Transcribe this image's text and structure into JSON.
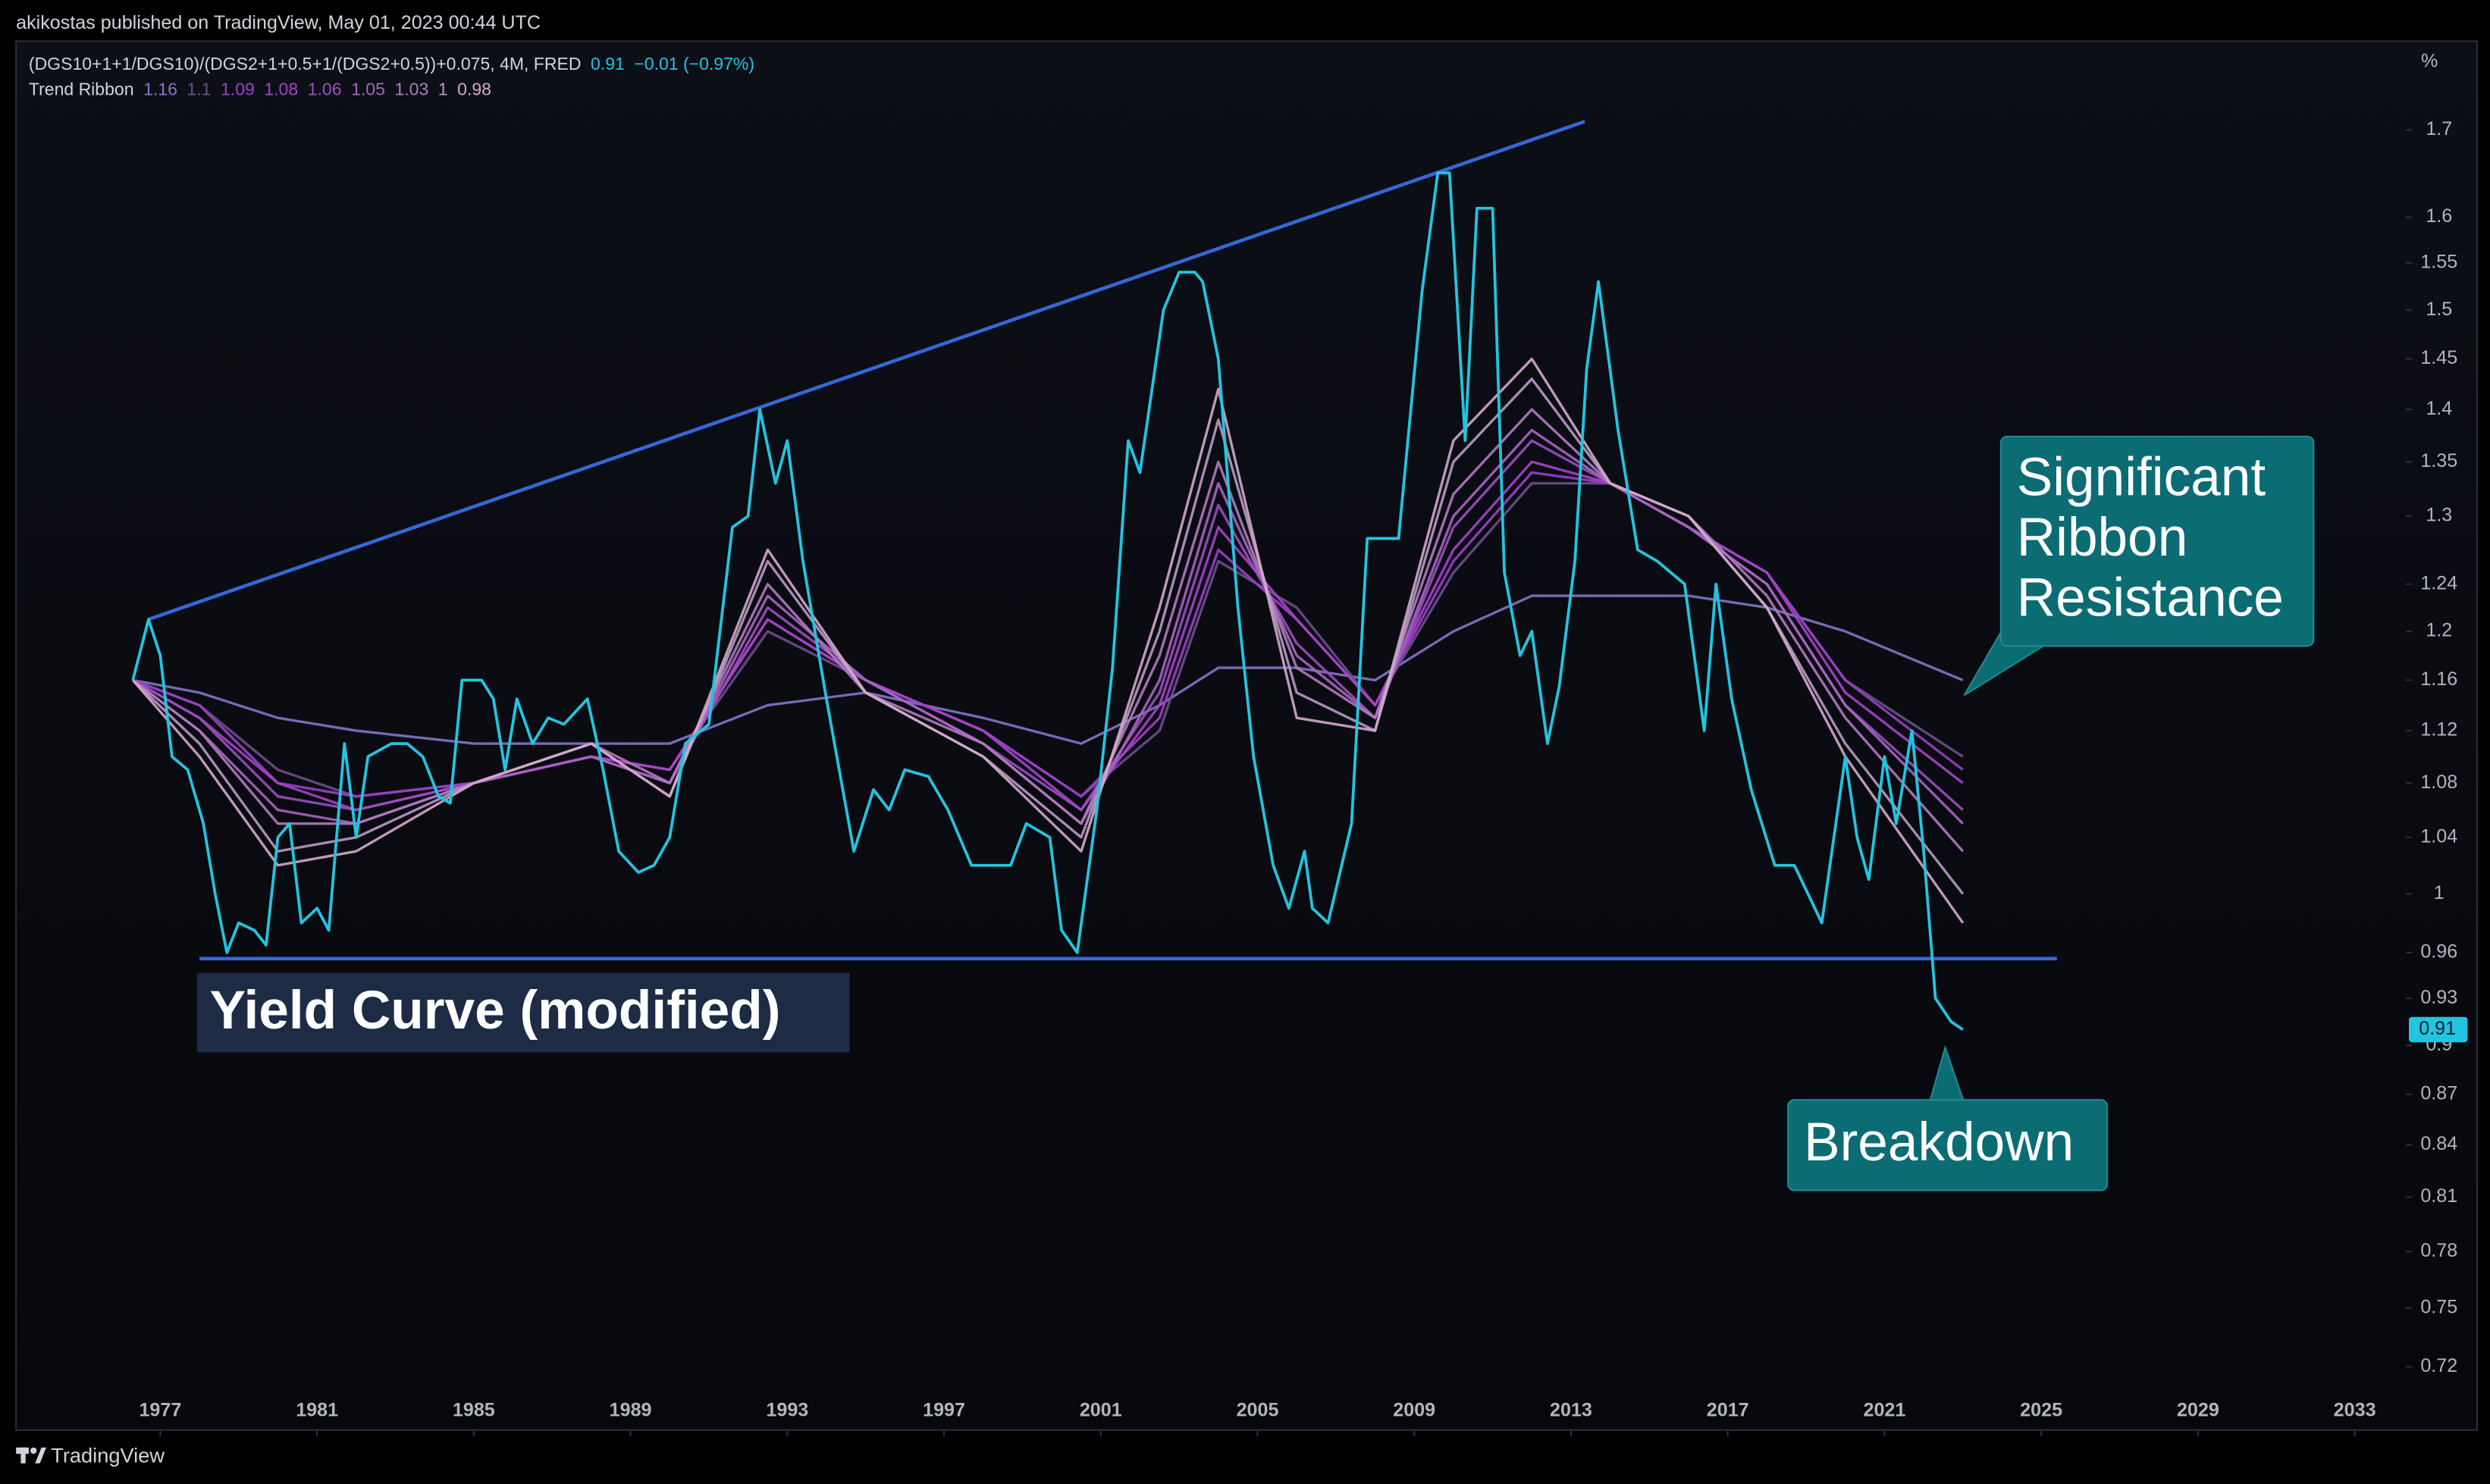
{
  "header": {
    "publisher": "akikostas published on TradingView, May 01, 2023 00:44 UTC",
    "footer": "TradingView"
  },
  "chart_data": {
    "type": "line",
    "log_scale": true,
    "y_unit": "%",
    "xlim": [
      1973.4,
      2034.3
    ],
    "ylim": [
      0.686,
      1.808
    ],
    "xticks": [
      1977,
      1981,
      1985,
      1989,
      1993,
      1997,
      2001,
      2005,
      2009,
      2013,
      2017,
      2021,
      2025,
      2029,
      2033
    ],
    "yticks": [
      0.72,
      0.75,
      0.78,
      0.81,
      0.84,
      0.87,
      0.9,
      0.93,
      0.96,
      1,
      1.04,
      1.08,
      1.12,
      1.16,
      1.2,
      1.24,
      1.3,
      1.35,
      1.4,
      1.45,
      1.5,
      1.55,
      1.6,
      1.7
    ],
    "series": [
      {
        "name": "(DGS10+1+1/DGS10)/(DGS2+1+0.5+1/(DGS2+0.5))+0.075, 4M, FRED",
        "color": "#22c4e0",
        "change": "−0.01 (−0.97%)",
        "x": [
          1976.3,
          1976.7,
          1977.0,
          1977.3,
          1977.7,
          1978.1,
          1978.4,
          1978.7,
          1979.0,
          1979.4,
          1979.7,
          1980.0,
          1980.3,
          1980.6,
          1981.0,
          1981.3,
          1981.7,
          1982.0,
          1982.3,
          1982.9,
          1983.3,
          1983.7,
          1984.1,
          1984.4,
          1984.7,
          1985.2,
          1985.5,
          1985.8,
          1986.1,
          1986.5,
          1986.9,
          1987.3,
          1987.9,
          1988.3,
          1988.7,
          1989.2,
          1989.6,
          1990.0,
          1990.4,
          1991.0,
          1991.6,
          1992.0,
          1992.3,
          1992.7,
          1993.0,
          1993.4,
          1994.0,
          1994.7,
          1995.2,
          1995.6,
          1996.0,
          1996.6,
          1997.1,
          1997.7,
          1998.3,
          1998.7,
          1999.1,
          1999.7,
          2000.0,
          2000.4,
          2000.9,
          2001.3,
          2001.7,
          2002.0,
          2002.6,
          2003.0,
          2003.4,
          2003.6,
          2004.0,
          2004.5,
          2004.9,
          2005.4,
          2005.8,
          2006.2,
          2006.4,
          2006.8,
          2007.4,
          2007.8,
          2008.1,
          2008.6,
          2009.2,
          2009.6,
          2009.9,
          2010.3,
          2010.6,
          2011.0,
          2011.3,
          2011.7,
          2012.0,
          2012.4,
          2012.7,
          2013.1,
          2013.4,
          2013.7,
          2014.2,
          2014.7,
          2015.2,
          2015.9,
          2016.4,
          2016.7,
          2017.1,
          2017.6,
          2018.2,
          2018.7,
          2019.4,
          2020.0,
          2020.3,
          2020.6,
          2021.0,
          2021.3,
          2021.7,
          2022.0,
          2022.3,
          2022.7,
          2023.0
        ],
        "values": [
          1.16,
          1.21,
          1.18,
          1.1,
          1.09,
          1.05,
          1.0,
          0.96,
          0.98,
          0.975,
          0.965,
          1.04,
          1.05,
          0.98,
          0.99,
          0.975,
          1.11,
          1.04,
          1.1,
          1.11,
          1.11,
          1.1,
          1.07,
          1.065,
          1.16,
          1.16,
          1.145,
          1.09,
          1.145,
          1.11,
          1.13,
          1.125,
          1.145,
          1.09,
          1.03,
          1.015,
          1.02,
          1.04,
          1.11,
          1.125,
          1.29,
          1.3,
          1.4,
          1.33,
          1.37,
          1.26,
          1.145,
          1.03,
          1.075,
          1.06,
          1.09,
          1.085,
          1.06,
          1.02,
          1.02,
          1.02,
          1.05,
          1.04,
          0.975,
          0.96,
          1.06,
          1.17,
          1.37,
          1.34,
          1.5,
          1.54,
          1.54,
          1.53,
          1.45,
          1.22,
          1.1,
          1.02,
          0.99,
          1.03,
          0.99,
          0.98,
          1.05,
          1.28,
          1.28,
          1.28,
          1.52,
          1.65,
          1.65,
          1.37,
          1.61,
          1.61,
          1.25,
          1.18,
          1.2,
          1.11,
          1.155,
          1.26,
          1.44,
          1.53,
          1.38,
          1.27,
          1.26,
          1.24,
          1.12,
          1.24,
          1.145,
          1.075,
          1.02,
          1.02,
          0.98,
          1.1,
          1.04,
          1.01,
          1.1,
          1.05,
          1.12,
          1.03,
          0.93,
          0.915,
          0.91
        ]
      }
    ],
    "ribbon": {
      "name": "Trend Ribbon",
      "x": [
        1976.3,
        1978,
        1980,
        1982,
        1985,
        1988,
        1990,
        1992.5,
        1995,
        1998,
        2000.5,
        2002.5,
        2004,
        2006,
        2008,
        2010,
        2012,
        2014,
        2016,
        2018,
        2020,
        2023
      ],
      "series": [
        {
          "color": "#8474c8",
          "values": [
            1.16,
            1.15,
            1.13,
            1.12,
            1.11,
            1.11,
            1.11,
            1.14,
            1.15,
            1.13,
            1.11,
            1.14,
            1.17,
            1.17,
            1.16,
            1.2,
            1.23,
            1.23,
            1.23,
            1.22,
            1.2,
            1.16
          ]
        },
        {
          "color": "#6a4f88",
          "values": [
            1.16,
            1.14,
            1.09,
            1.07,
            1.08,
            1.1,
            1.09,
            1.2,
            1.16,
            1.12,
            1.07,
            1.12,
            1.26,
            1.22,
            1.14,
            1.25,
            1.33,
            1.33,
            1.29,
            1.25,
            1.16,
            1.1
          ]
        },
        {
          "color": "#9b3fc9",
          "values": [
            1.16,
            1.14,
            1.08,
            1.07,
            1.08,
            1.1,
            1.09,
            1.21,
            1.16,
            1.12,
            1.07,
            1.13,
            1.27,
            1.21,
            1.14,
            1.26,
            1.34,
            1.33,
            1.29,
            1.25,
            1.16,
            1.09
          ]
        },
        {
          "color": "#a642c8",
          "values": [
            1.16,
            1.13,
            1.08,
            1.06,
            1.08,
            1.1,
            1.09,
            1.21,
            1.16,
            1.12,
            1.06,
            1.14,
            1.29,
            1.21,
            1.14,
            1.27,
            1.35,
            1.33,
            1.29,
            1.25,
            1.15,
            1.08
          ]
        },
        {
          "color": "#9a4fc0",
          "values": [
            1.16,
            1.13,
            1.07,
            1.06,
            1.08,
            1.1,
            1.08,
            1.22,
            1.16,
            1.11,
            1.06,
            1.15,
            1.31,
            1.19,
            1.13,
            1.29,
            1.37,
            1.33,
            1.29,
            1.24,
            1.14,
            1.06
          ]
        },
        {
          "color": "#a765c2",
          "values": [
            1.16,
            1.12,
            1.06,
            1.05,
            1.08,
            1.1,
            1.08,
            1.23,
            1.16,
            1.11,
            1.05,
            1.16,
            1.33,
            1.18,
            1.13,
            1.3,
            1.38,
            1.33,
            1.29,
            1.24,
            1.14,
            1.05
          ]
        },
        {
          "color": "#b07ac0",
          "values": [
            1.16,
            1.12,
            1.05,
            1.05,
            1.08,
            1.11,
            1.08,
            1.24,
            1.15,
            1.11,
            1.05,
            1.18,
            1.35,
            1.17,
            1.13,
            1.32,
            1.4,
            1.33,
            1.3,
            1.23,
            1.13,
            1.03
          ]
        },
        {
          "color": "#b89ac4",
          "values": [
            1.16,
            1.11,
            1.03,
            1.04,
            1.08,
            1.11,
            1.07,
            1.26,
            1.15,
            1.1,
            1.04,
            1.2,
            1.39,
            1.15,
            1.12,
            1.35,
            1.43,
            1.33,
            1.3,
            1.22,
            1.11,
            1.0
          ]
        },
        {
          "color": "#d4a8cc",
          "values": [
            1.16,
            1.1,
            1.02,
            1.03,
            1.08,
            1.11,
            1.07,
            1.27,
            1.15,
            1.1,
            1.03,
            1.22,
            1.42,
            1.13,
            1.12,
            1.37,
            1.45,
            1.33,
            1.3,
            1.22,
            1.1,
            0.98
          ]
        }
      ]
    },
    "trend_lines": [
      {
        "color": "#3567d6",
        "x": [
          1976.7,
          2013.35
        ],
        "values": [
          1.21,
          1.71
        ]
      },
      {
        "color": "#3567d6",
        "x": [
          1978.0,
          2025.4
        ],
        "values": [
          0.956,
          0.956
        ]
      }
    ],
    "annotations": {
      "label": "Yield Curve (modified)",
      "resistance": [
        "Significant",
        "Ribbon",
        "Resistance"
      ],
      "breakdown": "Breakdown"
    }
  }
}
